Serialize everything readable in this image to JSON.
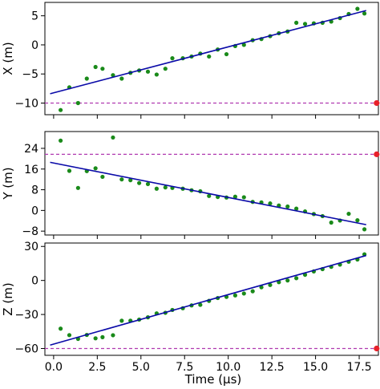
{
  "chart_data": [
    {
      "type": "scatter",
      "ylabel": "X (m)",
      "xlabel": "",
      "xlim": [
        -0.5,
        18.6
      ],
      "ylim": [
        -12,
        7.3
      ],
      "xticks": [
        0.0,
        2.5,
        5.0,
        7.5,
        10.0,
        12.5,
        15.0,
        17.5
      ],
      "yticks": [
        -10,
        -5,
        0,
        5
      ],
      "ytick_labels": [
        "−10",
        "−5",
        "0",
        "5"
      ],
      "points": {
        "x": [
          0.4,
          0.9,
          1.4,
          1.9,
          2.4,
          2.8,
          3.4,
          3.9,
          4.4,
          4.9,
          5.4,
          5.9,
          6.4,
          6.8,
          7.4,
          7.9,
          8.4,
          8.9,
          9.4,
          9.9,
          10.4,
          10.9,
          11.4,
          11.9,
          12.4,
          12.9,
          13.4,
          13.9,
          14.4,
          14.9,
          15.4,
          15.9,
          16.4,
          16.9,
          17.4,
          17.8
        ],
        "y": [
          -11.2,
          -7.3,
          -10.0,
          -5.8,
          -3.8,
          -4.1,
          -5.2,
          -5.8,
          -4.8,
          -4.4,
          -4.6,
          -5.1,
          -4.1,
          -2.3,
          -2.3,
          -2.0,
          -1.5,
          -2.0,
          -0.8,
          -1.6,
          -0.2,
          0.0,
          0.8,
          1.0,
          1.5,
          2.0,
          2.3,
          3.8,
          3.6,
          3.7,
          3.8,
          4.0,
          4.6,
          5.3,
          6.2,
          5.4
        ]
      },
      "fit": {
        "x": [
          -0.2,
          17.9
        ],
        "y": [
          -8.4,
          5.9
        ]
      },
      "reference": {
        "y": -10.0,
        "marker_x": 18.5
      }
    },
    {
      "type": "scatter",
      "ylabel": "Y (m)",
      "xlabel": "",
      "xlim": [
        -0.5,
        18.6
      ],
      "ylim": [
        -9.5,
        30.5
      ],
      "xticks": [
        0.0,
        2.5,
        5.0,
        7.5,
        10.0,
        12.5,
        15.0,
        17.5
      ],
      "yticks": [
        -8,
        0,
        8,
        16,
        24
      ],
      "ytick_labels": [
        "−8",
        "0",
        "8",
        "16",
        "24"
      ],
      "points": {
        "x": [
          0.4,
          0.9,
          1.4,
          1.9,
          2.4,
          2.8,
          3.4,
          3.9,
          4.4,
          4.9,
          5.4,
          5.9,
          6.4,
          6.8,
          7.4,
          7.9,
          8.4,
          8.9,
          9.4,
          9.9,
          10.4,
          10.9,
          11.4,
          11.9,
          12.4,
          12.9,
          13.4,
          13.9,
          14.4,
          14.9,
          15.4,
          15.9,
          16.4,
          16.9,
          17.4,
          17.8
        ],
        "y": [
          27.0,
          15.3,
          8.7,
          15.2,
          16.3,
          13.0,
          28.2,
          12.0,
          11.7,
          10.6,
          10.2,
          8.4,
          8.9,
          8.7,
          8.4,
          7.8,
          7.4,
          5.6,
          5.2,
          5.0,
          5.3,
          5.1,
          3.3,
          3.1,
          2.7,
          1.9,
          1.5,
          0.7,
          -0.4,
          -1.4,
          -2.2,
          -4.7,
          -3.9,
          -1.3,
          -3.8,
          -7.3
        ]
      },
      "fit": {
        "x": [
          -0.2,
          17.9
        ],
        "y": [
          18.6,
          -5.5
        ]
      },
      "reference": {
        "y": 21.7,
        "marker_x": 18.5
      }
    },
    {
      "type": "scatter",
      "ylabel": "Z (m)",
      "xlabel": "Time (μs)",
      "xlim": [
        -0.5,
        18.6
      ],
      "ylim": [
        -66,
        33
      ],
      "xticks": [
        0.0,
        2.5,
        5.0,
        7.5,
        10.0,
        12.5,
        15.0,
        17.5
      ],
      "xtick_labels": [
        "0.0",
        "2.5",
        "5.0",
        "7.5",
        "10.0",
        "12.5",
        "15.0",
        "17.5"
      ],
      "yticks": [
        -60,
        -30,
        0,
        30
      ],
      "ytick_labels": [
        "−60",
        "−30",
        "0",
        "30"
      ],
      "points": {
        "x": [
          0.4,
          0.9,
          1.4,
          1.9,
          2.4,
          2.8,
          3.4,
          3.9,
          4.4,
          4.9,
          5.4,
          5.9,
          6.4,
          6.8,
          7.4,
          7.9,
          8.4,
          8.9,
          9.4,
          9.9,
          10.4,
          10.9,
          11.4,
          11.9,
          12.4,
          12.9,
          13.4,
          13.9,
          14.4,
          14.9,
          15.4,
          15.9,
          16.4,
          16.9,
          17.4,
          17.8
        ],
        "y": [
          -42.5,
          -48.2,
          -51.5,
          -48.0,
          -51.0,
          -50.0,
          -48.3,
          -35.5,
          -35.5,
          -34.5,
          -32.5,
          -29.0,
          -28.5,
          -26.0,
          -24.5,
          -22.0,
          -21.5,
          -18.0,
          -15.5,
          -14.5,
          -13.2,
          -11.5,
          -9.5,
          -6.0,
          -4.0,
          -1.5,
          0.0,
          2.0,
          5.0,
          8.0,
          10.0,
          12.0,
          14.0,
          16.5,
          18.5,
          23.0
        ]
      },
      "fit": {
        "x": [
          -0.2,
          17.9
        ],
        "y": [
          -57.0,
          22.0
        ]
      },
      "reference": {
        "y": -60.0,
        "marker_x": 18.5
      }
    }
  ],
  "colors": {
    "points": "#1a8a1a",
    "fit": "#0a0aa8",
    "reference": "#b03ab0",
    "marker": "#e8202a"
  }
}
